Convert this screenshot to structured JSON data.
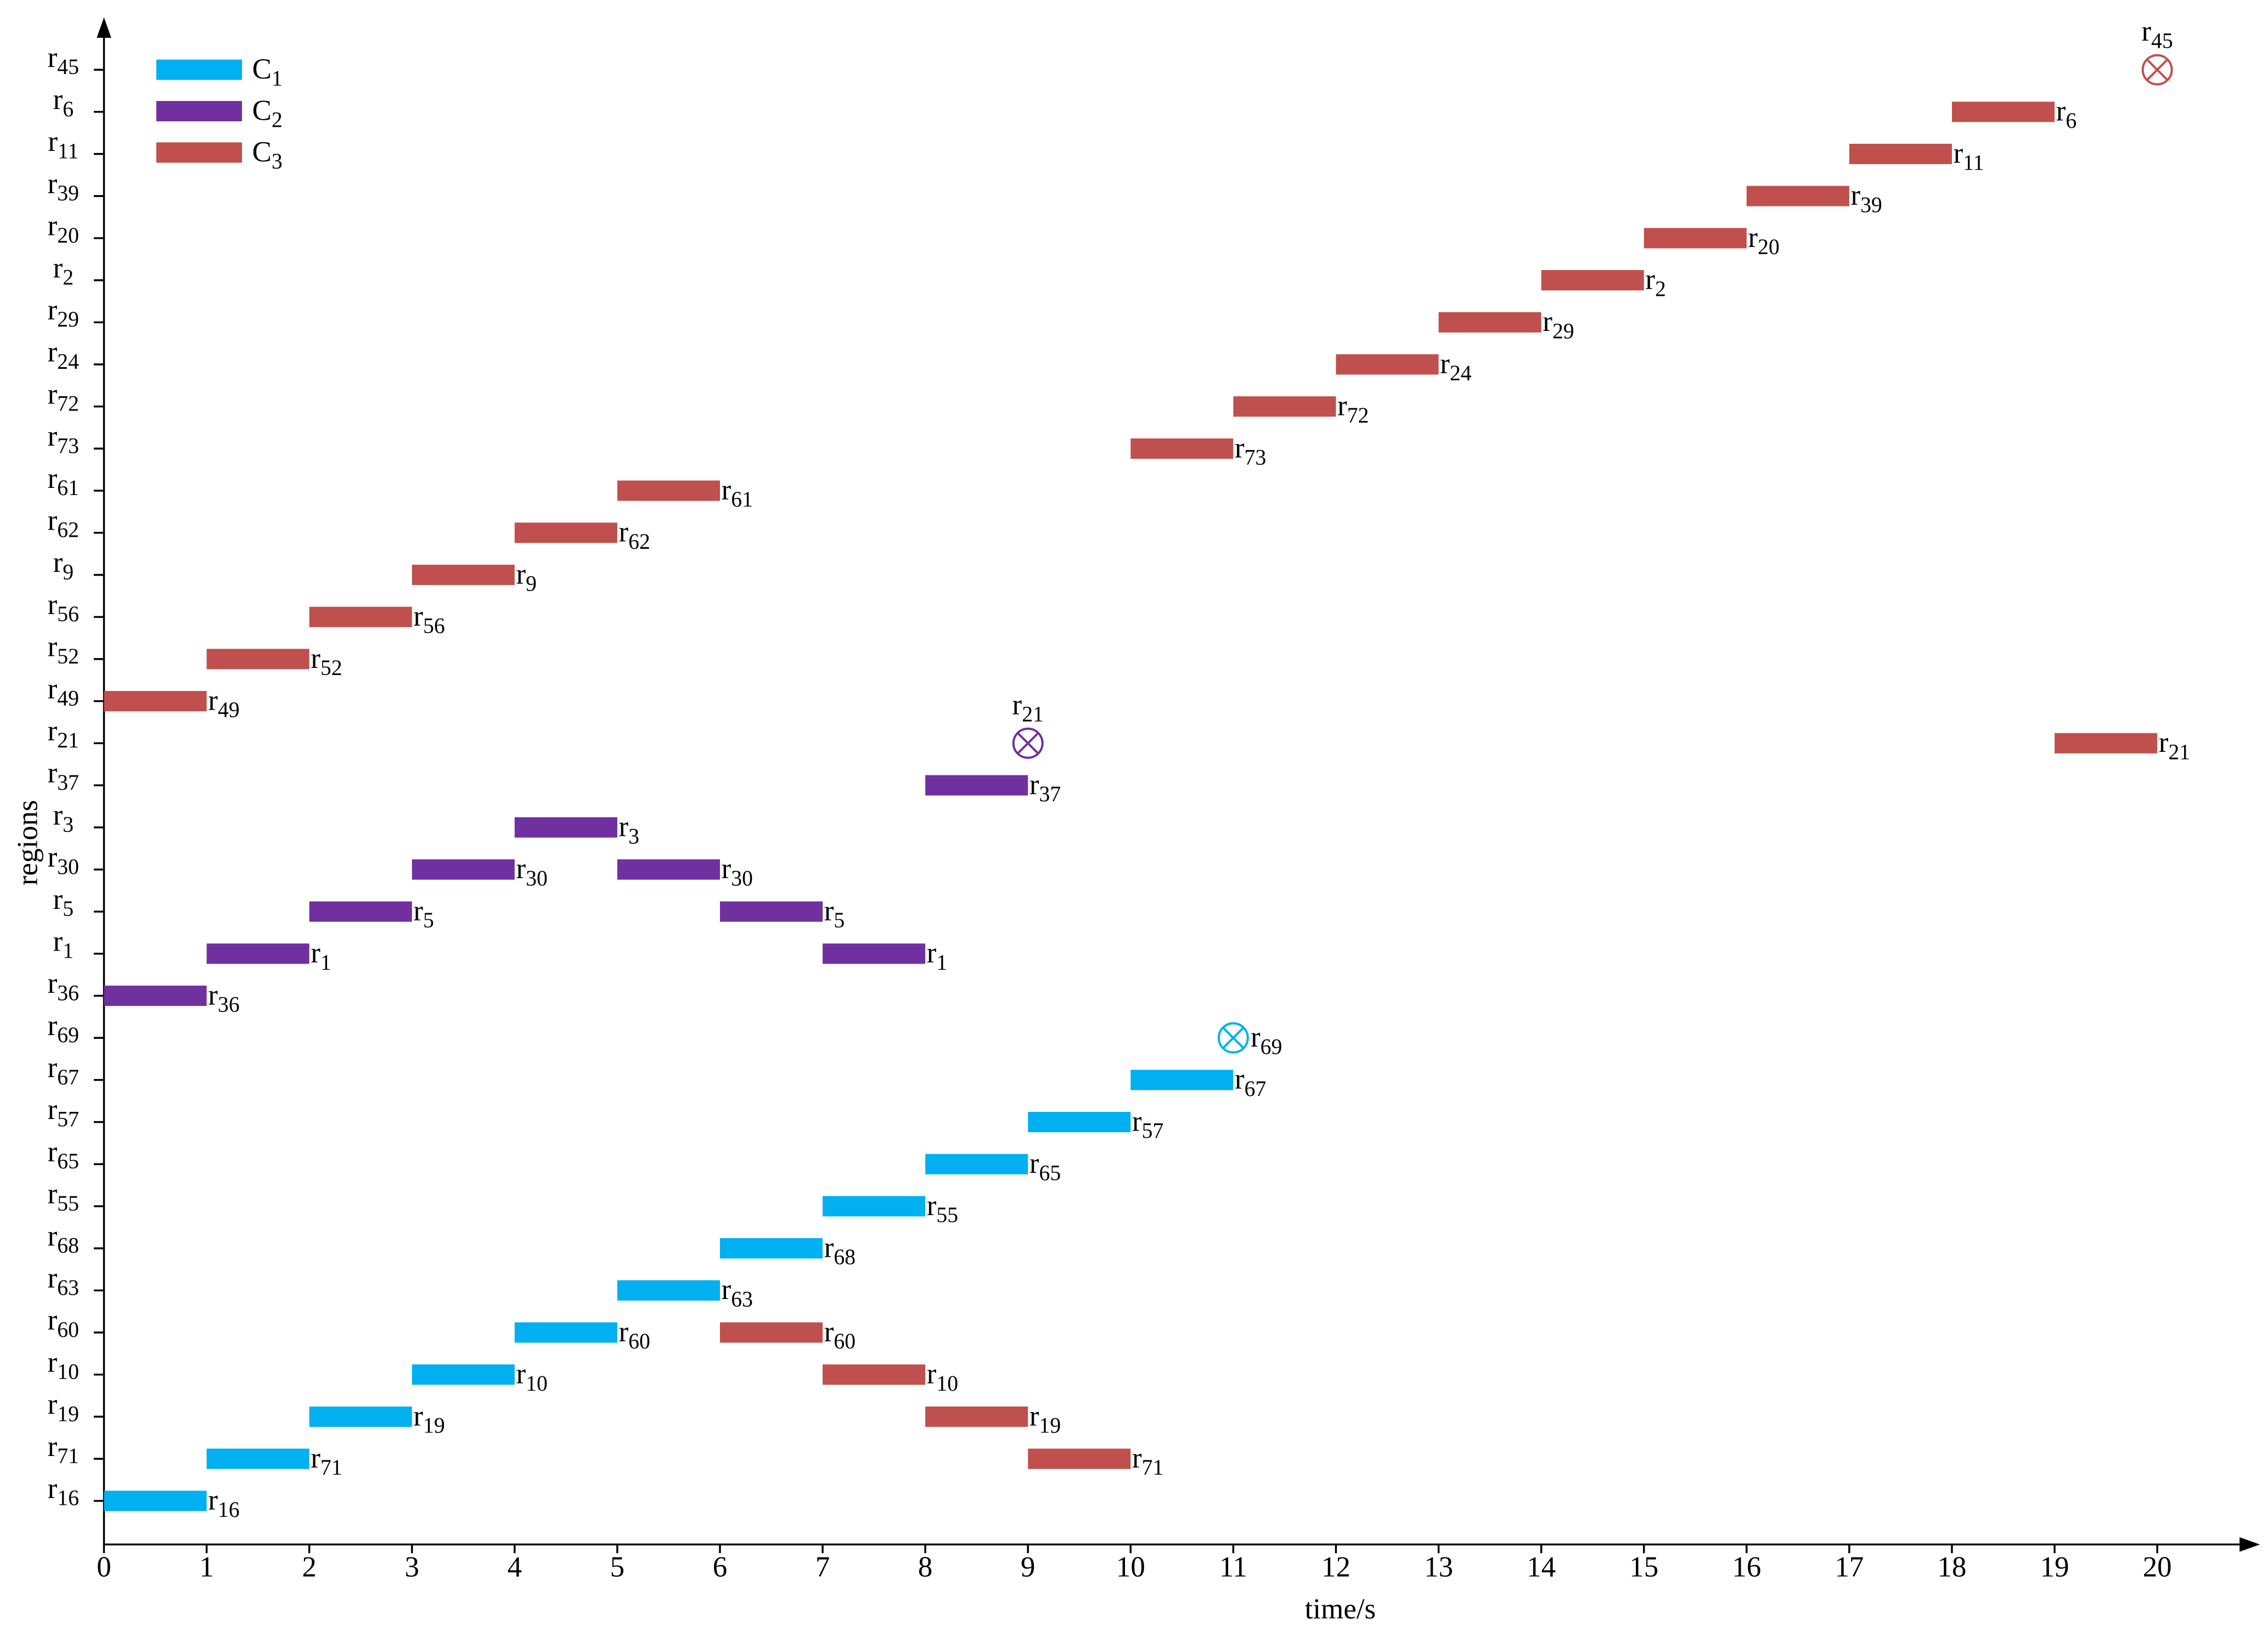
{
  "chart_data": {
    "type": "gantt",
    "xlabel": "time/s",
    "ylabel": "regions",
    "xlim": [
      0,
      21
    ],
    "xticks": [
      0,
      1,
      2,
      3,
      4,
      5,
      6,
      7,
      8,
      9,
      10,
      11,
      12,
      13,
      14,
      15,
      16,
      17,
      18,
      19,
      20
    ],
    "categories": [
      "r16",
      "r71",
      "r19",
      "r10",
      "r60",
      "r63",
      "r68",
      "r55",
      "r65",
      "r57",
      "r67",
      "r69",
      "r36",
      "r1",
      "r5",
      "r30",
      "r3",
      "r37",
      "r21",
      "r49",
      "r52",
      "r56",
      "r9",
      "r62",
      "r61",
      "r73",
      "r72",
      "r24",
      "r29",
      "r2",
      "r20",
      "r39",
      "r11",
      "r6",
      "r45"
    ],
    "legend": "upper left",
    "series": [
      {
        "name": "C1",
        "color": "#00b0f0",
        "tasks": [
          {
            "region": "r16",
            "start": 0,
            "end": 1
          },
          {
            "region": "r71",
            "start": 1,
            "end": 2
          },
          {
            "region": "r19",
            "start": 2,
            "end": 3
          },
          {
            "region": "r10",
            "start": 3,
            "end": 4
          },
          {
            "region": "r60",
            "start": 4,
            "end": 5
          },
          {
            "region": "r63",
            "start": 5,
            "end": 6
          },
          {
            "region": "r68",
            "start": 6,
            "end": 7
          },
          {
            "region": "r55",
            "start": 7,
            "end": 8
          },
          {
            "region": "r65",
            "start": 8,
            "end": 9
          },
          {
            "region": "r57",
            "start": 9,
            "end": 10
          },
          {
            "region": "r67",
            "start": 10,
            "end": 11
          }
        ],
        "failures": [
          {
            "region": "r69",
            "time": 11
          }
        ]
      },
      {
        "name": "C2",
        "color": "#7030a0",
        "tasks": [
          {
            "region": "r36",
            "start": 0,
            "end": 1
          },
          {
            "region": "r1",
            "start": 1,
            "end": 2
          },
          {
            "region": "r5",
            "start": 2,
            "end": 3
          },
          {
            "region": "r30",
            "start": 3,
            "end": 4
          },
          {
            "region": "r3",
            "start": 4,
            "end": 5
          },
          {
            "region": "r30",
            "start": 5,
            "end": 6
          },
          {
            "region": "r5",
            "start": 6,
            "end": 7
          },
          {
            "region": "r1",
            "start": 7,
            "end": 8
          },
          {
            "region": "r37",
            "start": 8,
            "end": 9
          }
        ],
        "failures": [
          {
            "region": "r21",
            "time": 9
          }
        ]
      },
      {
        "name": "C3",
        "color": "#c0504d",
        "tasks": [
          {
            "region": "r49",
            "start": 0,
            "end": 1
          },
          {
            "region": "r52",
            "start": 1,
            "end": 2
          },
          {
            "region": "r56",
            "start": 2,
            "end": 3
          },
          {
            "region": "r9",
            "start": 3,
            "end": 4
          },
          {
            "region": "r62",
            "start": 4,
            "end": 5
          },
          {
            "region": "r61",
            "start": 5,
            "end": 6
          },
          {
            "region": "r60",
            "start": 6,
            "end": 7
          },
          {
            "region": "r10",
            "start": 7,
            "end": 8
          },
          {
            "region": "r19",
            "start": 8,
            "end": 9
          },
          {
            "region": "r71",
            "start": 9,
            "end": 10
          },
          {
            "region": "r73",
            "start": 10,
            "end": 11
          },
          {
            "region": "r72",
            "start": 11,
            "end": 12
          },
          {
            "region": "r24",
            "start": 12,
            "end": 13
          },
          {
            "region": "r29",
            "start": 13,
            "end": 14
          },
          {
            "region": "r2",
            "start": 14,
            "end": 15
          },
          {
            "region": "r20",
            "start": 15,
            "end": 16
          },
          {
            "region": "r39",
            "start": 16,
            "end": 17
          },
          {
            "region": "r11",
            "start": 17,
            "end": 18
          },
          {
            "region": "r6",
            "start": 18,
            "end": 19
          },
          {
            "region": "r21",
            "start": 19,
            "end": 20
          }
        ],
        "failures": [
          {
            "region": "r45",
            "time": 20
          }
        ]
      }
    ]
  }
}
